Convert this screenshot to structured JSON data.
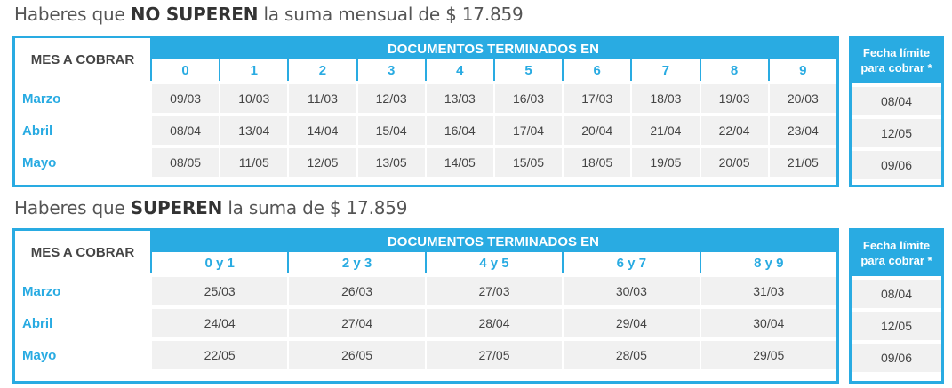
{
  "section1": {
    "title_prefix": "Haberes que ",
    "title_bold": "NO SUPEREN",
    "title_suffix": " la suma mensual de $ 17.859",
    "mes_header": "MES A COBRAR",
    "docs_header": "DOCUMENTOS TERMINADOS EN",
    "columns": [
      "0",
      "1",
      "2",
      "3",
      "4",
      "5",
      "6",
      "7",
      "8",
      "9"
    ],
    "rows": [
      {
        "month": "Marzo",
        "values": [
          "09/03",
          "10/03",
          "11/03",
          "12/03",
          "13/03",
          "16/03",
          "17/03",
          "18/03",
          "19/03",
          "20/03"
        ],
        "deadline": "08/04"
      },
      {
        "month": "Abril",
        "values": [
          "08/04",
          "13/04",
          "14/04",
          "15/04",
          "16/04",
          "17/04",
          "20/04",
          "21/04",
          "22/04",
          "23/04"
        ],
        "deadline": "12/05"
      },
      {
        "month": "Mayo",
        "values": [
          "08/05",
          "11/05",
          "12/05",
          "13/05",
          "14/05",
          "15/05",
          "18/05",
          "19/05",
          "20/05",
          "21/05"
        ],
        "deadline": "09/06"
      }
    ],
    "deadline_header_line1": "Fecha límite",
    "deadline_header_line2": "para cobrar *"
  },
  "section2": {
    "title_prefix": "Haberes que ",
    "title_bold": "SUPEREN",
    "title_suffix": " la suma de $ 17.859",
    "mes_header": "MES A COBRAR",
    "docs_header": "DOCUMENTOS TERMINADOS EN",
    "columns": [
      "0 y 1",
      "2 y 3",
      "4 y 5",
      "6 y 7",
      "8 y 9"
    ],
    "rows": [
      {
        "month": "Marzo",
        "values": [
          "25/03",
          "26/03",
          "27/03",
          "30/03",
          "31/03"
        ],
        "deadline": "08/04"
      },
      {
        "month": "Abril",
        "values": [
          "24/04",
          "27/04",
          "28/04",
          "29/04",
          "30/04"
        ],
        "deadline": "12/05"
      },
      {
        "month": "Mayo",
        "values": [
          "22/05",
          "26/05",
          "27/05",
          "28/05",
          "29/05"
        ],
        "deadline": "09/06"
      }
    ],
    "deadline_header_line1": "Fecha límite",
    "deadline_header_line2": "para cobrar *"
  },
  "colors": {
    "accent": "#29abe2",
    "cell_bg": "#f1f1f1"
  }
}
